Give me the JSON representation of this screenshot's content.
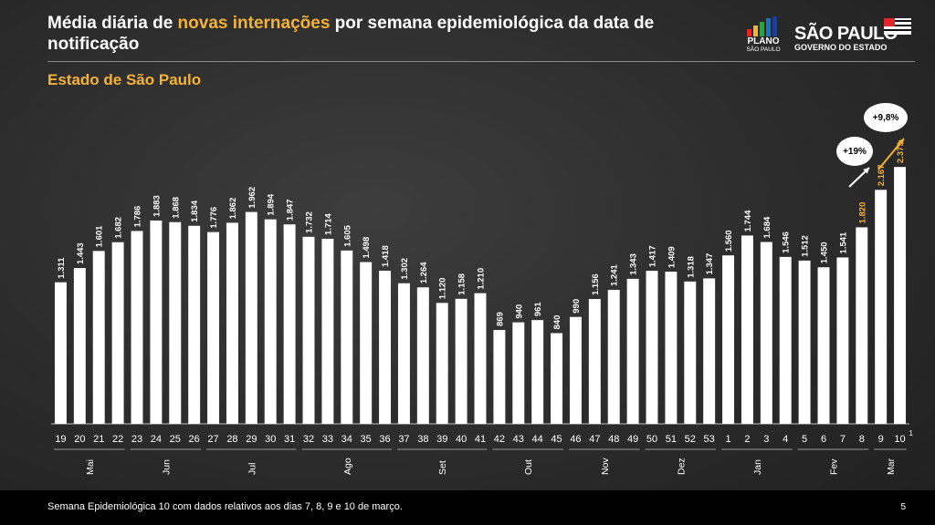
{
  "header": {
    "title_part1": "Média diária de ",
    "title_highlight": "novas internações",
    "title_part2": " por semana epidemiológica da data de notificação",
    "subtitle": "Estado de São Paulo"
  },
  "logos": {
    "plano_line1": "PLANO",
    "plano_line2": "SÃO PAULO",
    "sp_line1": "SÃO PAULO",
    "sp_line2": "GOVERNO DO ESTADO"
  },
  "annotations": {
    "growth1": "+19%",
    "growth2": "+9,8%",
    "week10_superscript": "1"
  },
  "footer": {
    "note": "Semana Epidemiológica 10 com dados relativos aos dias 7, 8, 9 e 10 de março.",
    "page": "5"
  },
  "colors": {
    "bar": "#ffffff",
    "highlight_label": "#f5b335",
    "background": "#2b2b2b"
  },
  "chart_data": {
    "type": "bar",
    "title": "Média diária de novas internações por semana epidemiológica da data de notificação",
    "subtitle": "Estado de São Paulo",
    "xlabel": "",
    "ylabel": "",
    "ylim": [
      0,
      2600
    ],
    "categories": [
      "19",
      "20",
      "21",
      "22",
      "23",
      "24",
      "25",
      "26",
      "27",
      "28",
      "29",
      "30",
      "31",
      "32",
      "33",
      "34",
      "35",
      "36",
      "37",
      "38",
      "39",
      "40",
      "41",
      "42",
      "43",
      "44",
      "45",
      "46",
      "47",
      "48",
      "49",
      "50",
      "51",
      "52",
      "53",
      "1",
      "2",
      "3",
      "4",
      "5",
      "6",
      "7",
      "8",
      "9",
      "10"
    ],
    "values": [
      1311,
      1443,
      1601,
      1682,
      1786,
      1883,
      1868,
      1834,
      1776,
      1862,
      1962,
      1894,
      1847,
      1732,
      1714,
      1605,
      1498,
      1418,
      1302,
      1264,
      1120,
      1158,
      1210,
      869,
      940,
      961,
      840,
      990,
      1156,
      1241,
      1343,
      1417,
      1409,
      1318,
      1347,
      1560,
      1744,
      1684,
      1546,
      1512,
      1450,
      1541,
      1820,
      2167,
      2379
    ],
    "labels": [
      "1.311",
      "1.443",
      "1.601",
      "1.682",
      "1.786",
      "1.883",
      "1.868",
      "1.834",
      "1.776",
      "1.862",
      "1.962",
      "1.894",
      "1.847",
      "1.732",
      "1.714",
      "1.605",
      "1.498",
      "1.418",
      "1.302",
      "1.264",
      "1.120",
      "1.158",
      "1.210",
      "869",
      "940",
      "961",
      "840",
      "990",
      "1.156",
      "1.241",
      "1.343",
      "1.417",
      "1.409",
      "1.318",
      "1.347",
      "1.560",
      "1.744",
      "1.684",
      "1.546",
      "1.512",
      "1.450",
      "1.541",
      "1.820",
      "2.167",
      "2.379"
    ],
    "highlighted_indices": [
      42,
      43,
      44
    ],
    "months": [
      {
        "name": "Mai",
        "start": 0,
        "end": 3
      },
      {
        "name": "Jun",
        "start": 4,
        "end": 7
      },
      {
        "name": "Jul",
        "start": 8,
        "end": 12
      },
      {
        "name": "Ago",
        "start": 13,
        "end": 17
      },
      {
        "name": "Set",
        "start": 18,
        "end": 22
      },
      {
        "name": "Out",
        "start": 23,
        "end": 26
      },
      {
        "name": "Nov",
        "start": 27,
        "end": 30
      },
      {
        "name": "Dez",
        "start": 31,
        "end": 34
      },
      {
        "name": "Jan",
        "start": 35,
        "end": 38
      },
      {
        "name": "Fev",
        "start": 39,
        "end": 42
      },
      {
        "name": "Mar",
        "start": 43,
        "end": 44
      }
    ]
  }
}
